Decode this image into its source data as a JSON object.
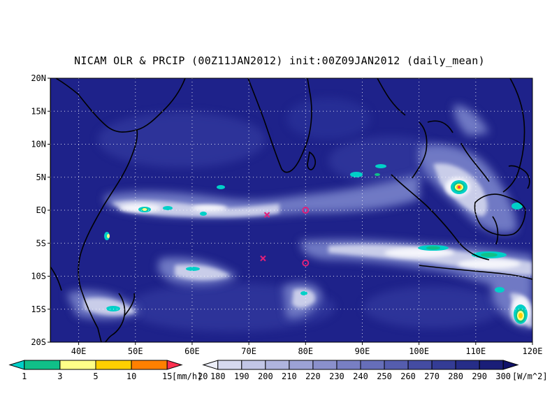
{
  "title": "NICAM OLR & PRCIP (00Z11JAN2012) init:00Z09JAN2012 (daily_mean)",
  "map": {
    "lon_range": [
      35,
      120
    ],
    "lat_range": [
      -20,
      20
    ],
    "colors": {
      "ocean_deep": "#1a1d82",
      "ocean_mid": "#2c3599",
      "cloud_mid": "#6f79c4",
      "cloud_light": "#c9cde9",
      "cloud_white": "#f4f5fb",
      "coast": "#000000",
      "grid": "#ffffff",
      "marker": "#e0207a"
    },
    "lat_ticks": [
      {
        "v": 20,
        "t": "20N"
      },
      {
        "v": 15,
        "t": "15N"
      },
      {
        "v": 10,
        "t": "10N"
      },
      {
        "v": 5,
        "t": "5N"
      },
      {
        "v": 0,
        "t": "EQ"
      },
      {
        "v": -5,
        "t": "5S"
      },
      {
        "v": -10,
        "t": "10S"
      },
      {
        "v": -15,
        "t": "15S"
      },
      {
        "v": -20,
        "t": "20S"
      }
    ],
    "lon_ticks": [
      {
        "v": 40,
        "t": "40E"
      },
      {
        "v": 50,
        "t": "50E"
      },
      {
        "v": 60,
        "t": "60E"
      },
      {
        "v": 70,
        "t": "70E"
      },
      {
        "v": 80,
        "t": "80E"
      },
      {
        "v": 90,
        "t": "90E"
      },
      {
        "v": 100,
        "t": "100E"
      },
      {
        "v": 110,
        "t": "110E"
      },
      {
        "v": 120,
        "t": "120E"
      }
    ],
    "markers": [
      {
        "type": "cross",
        "lon": 73.2,
        "lat": -0.7
      },
      {
        "type": "cross",
        "lon": 72.5,
        "lat": -7.3
      },
      {
        "type": "circle",
        "lon": 80.0,
        "lat": 0.0
      },
      {
        "type": "circle",
        "lon": 80.0,
        "lat": -8.0
      }
    ]
  },
  "precip_legend": {
    "labels": [
      "1",
      "3",
      "5",
      "10",
      "15",
      "20"
    ],
    "colors": [
      "#00d0c8",
      "#10c088",
      "#ffff88",
      "#ffd000",
      "#ff8000",
      "#ff3050"
    ],
    "unit": "[mm/h]"
  },
  "olr_legend": {
    "labels": [
      "180",
      "190",
      "200",
      "210",
      "220",
      "230",
      "240",
      "250",
      "260",
      "270",
      "280",
      "290",
      "300"
    ],
    "colors": [
      "#eceef8",
      "#d6d9ef",
      "#c2c6e6",
      "#afb4de",
      "#9ca2d5",
      "#8a90cc",
      "#787fc3",
      "#666eb9",
      "#555dae",
      "#444ca2",
      "#343c95",
      "#262d88",
      "#1a1e78",
      "#10126a"
    ],
    "unit": "[W/m^2]"
  }
}
